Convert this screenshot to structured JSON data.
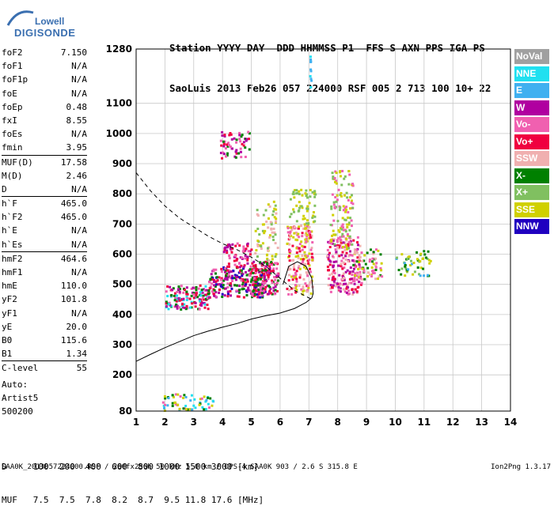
{
  "logo": {
    "line1": "Lowell",
    "line2": "DIGISONDE"
  },
  "header": {
    "line1": "Station YYYY DAY  DDD HHMMSS P1  FFS S AXN PPS IGA PS",
    "line2": "SaoLuis 2013 Feb26 057 224000 RSF 005 2 713 100 10+ 22"
  },
  "params": [
    [
      {
        "name": "foF2",
        "value": "7.150"
      },
      {
        "name": "foF1",
        "value": "N/A"
      },
      {
        "name": "foF1p",
        "value": "N/A"
      },
      {
        "name": "foE",
        "value": "N/A"
      },
      {
        "name": "foEp",
        "value": "0.48"
      },
      {
        "name": "fxI",
        "value": "8.55"
      },
      {
        "name": "foEs",
        "value": "N/A"
      },
      {
        "name": "fmin",
        "value": "3.95"
      }
    ],
    [
      {
        "name": "MUF(D)",
        "value": "17.58"
      },
      {
        "name": "M(D)",
        "value": "2.46"
      },
      {
        "name": "D",
        "value": "N/A"
      }
    ],
    [
      {
        "name": "h`F",
        "value": "465.0"
      },
      {
        "name": "h`F2",
        "value": "465.0"
      },
      {
        "name": "h`E",
        "value": "N/A"
      },
      {
        "name": "h`Es",
        "value": "N/A"
      }
    ],
    [
      {
        "name": "hmF2",
        "value": "464.6"
      },
      {
        "name": "hmF1",
        "value": "N/A"
      },
      {
        "name": "hmE",
        "value": "110.0"
      },
      {
        "name": "yF2",
        "value": "101.8"
      },
      {
        "name": "yF1",
        "value": "N/A"
      },
      {
        "name": "yE",
        "value": "20.0"
      },
      {
        "name": "B0",
        "value": "115.6"
      },
      {
        "name": "B1",
        "value": "1.34"
      }
    ],
    [
      {
        "name": "C-level",
        "value": "55"
      }
    ]
  ],
  "auto": {
    "line1": "Auto:",
    "line2": "Artist5",
    "line3": "500200"
  },
  "footer": {
    "line1": "D     100  200  400  600  800 1000 1500 3000 [km]",
    "line2": "MUF   7.5  7.5  7.8  8.2  8.7  9.5 11.8 17.6 [MHz]",
    "line3": "SAA0K_2013057224000.RSF / 260fx256h 50 kHz 5.0 km / DPS-4 SAA0K 903 / 2.6 S 315.8 E",
    "version": "Ion2Png 1.3.17"
  },
  "legend": [
    {
      "label": "NoVal",
      "color": "#a0a0a0"
    },
    {
      "label": "NNE",
      "color": "#20e0f0"
    },
    {
      "label": "E",
      "color": "#40b0f0"
    },
    {
      "label": "W",
      "color": "#b000a0"
    },
    {
      "label": "Vo-",
      "color": "#f060b0"
    },
    {
      "label": "Vo+",
      "color": "#f00040"
    },
    {
      "label": "SSW",
      "color": "#f0b0b0"
    },
    {
      "label": "X-",
      "color": "#008000"
    },
    {
      "label": "X+",
      "color": "#80c060"
    },
    {
      "label": "SSE",
      "color": "#d0d000"
    },
    {
      "label": "NNW",
      "color": "#2000c0"
    }
  ],
  "chart_data": {
    "type": "scatter",
    "title": "",
    "xlabel": "",
    "ylabel": "",
    "xlim": [
      1,
      14
    ],
    "ylim": [
      80,
      1280
    ],
    "x_ticks": [
      1,
      2,
      3,
      4,
      5,
      6,
      7,
      8,
      9,
      10,
      11,
      12,
      13,
      14
    ],
    "y_ticks": [
      80,
      200,
      300,
      400,
      500,
      600,
      700,
      800,
      900,
      1000,
      1100,
      1280
    ],
    "grid": true,
    "series": [
      {
        "style": "solid",
        "x": [
          1.0,
          1.5,
          2.0,
          2.5,
          3.0,
          3.5,
          4.0,
          4.5,
          5.0,
          5.5,
          6.0,
          6.5,
          6.9,
          7.1,
          7.15,
          7.1,
          6.9,
          6.6,
          6.3,
          6.1
        ],
        "y": [
          245,
          268,
          290,
          310,
          330,
          345,
          358,
          370,
          385,
          396,
          405,
          420,
          440,
          455,
          470,
          520,
          560,
          575,
          560,
          500
        ]
      },
      {
        "style": "dashed",
        "x": [
          1.0,
          1.5,
          2.0,
          2.5,
          3.0,
          3.5,
          4.0,
          4.5,
          5.0,
          5.5,
          6.0,
          6.5,
          7.0,
          7.15
        ],
        "y": [
          870,
          810,
          760,
          720,
          690,
          660,
          635,
          615,
          590,
          560,
          520,
          480,
          455,
          450
        ]
      }
    ],
    "clusters": [
      {
        "x": [
          2.0,
          3.5
        ],
        "y": [
          420,
          500
        ],
        "colors": [
          "#b000a0",
          "#f060b0",
          "#f00040",
          "#008000",
          "#20e0f0"
        ],
        "n": 160
      },
      {
        "x": [
          3.5,
          5.5
        ],
        "y": [
          460,
          560
        ],
        "colors": [
          "#b000a0",
          "#f060b0",
          "#f00040",
          "#2000c0",
          "#008000"
        ],
        "n": 240
      },
      {
        "x": [
          4.0,
          5.0
        ],
        "y": [
          560,
          640
        ],
        "colors": [
          "#b000a0",
          "#f060b0",
          "#f00040"
        ],
        "n": 70
      },
      {
        "x": [
          5.0,
          5.9
        ],
        "y": [
          470,
          580
        ],
        "colors": [
          "#f060b0",
          "#f00040",
          "#b000a0",
          "#008000"
        ],
        "n": 140
      },
      {
        "x": [
          5.1,
          5.9
        ],
        "y": [
          580,
          780
        ],
        "colors": [
          "#d0d000",
          "#f0b0b0",
          "#80c060"
        ],
        "n": 70
      },
      {
        "x": [
          6.2,
          7.1
        ],
        "y": [
          470,
          700
        ],
        "colors": [
          "#f060b0",
          "#f00040",
          "#f0b0b0",
          "#d0d000"
        ],
        "n": 190
      },
      {
        "x": [
          6.3,
          7.2
        ],
        "y": [
          700,
          820
        ],
        "colors": [
          "#d0d000",
          "#80c060"
        ],
        "n": 60
      },
      {
        "x": [
          7.6,
          8.8
        ],
        "y": [
          470,
          660
        ],
        "colors": [
          "#f060b0",
          "#f00040",
          "#f0b0b0",
          "#b000a0"
        ],
        "n": 200
      },
      {
        "x": [
          7.7,
          8.5
        ],
        "y": [
          620,
          880
        ],
        "colors": [
          "#d0d000",
          "#80c060",
          "#f060b0"
        ],
        "n": 120
      },
      {
        "x": [
          8.5,
          9.5
        ],
        "y": [
          520,
          620
        ],
        "colors": [
          "#f060b0",
          "#f0b0b0",
          "#d0d000",
          "#008000"
        ],
        "n": 70
      },
      {
        "x": [
          10.0,
          11.2
        ],
        "y": [
          530,
          620
        ],
        "colors": [
          "#008000",
          "#40b0f0",
          "#80c060",
          "#d0d000"
        ],
        "n": 55
      },
      {
        "x": [
          3.9,
          4.9
        ],
        "y": [
          920,
          1010
        ],
        "colors": [
          "#b000a0",
          "#f060b0",
          "#f00040",
          "#008000"
        ],
        "n": 60
      },
      {
        "x": [
          1.9,
          3.7
        ],
        "y": [
          85,
          140
        ],
        "colors": [
          "#40b0f0",
          "#20e0f0",
          "#d0d000",
          "#008000",
          "#f060b0"
        ],
        "n": 60
      },
      {
        "x": [
          7.0,
          7.05
        ],
        "y": [
          1150,
          1270
        ],
        "colors": [
          "#20e0f0",
          "#40b0f0"
        ],
        "n": 10
      }
    ]
  }
}
